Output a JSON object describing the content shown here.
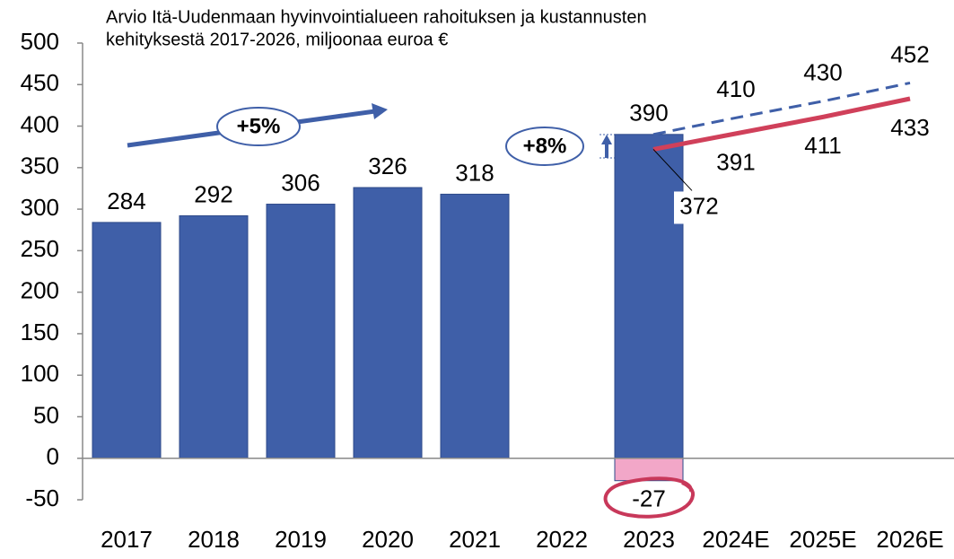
{
  "chart_data": {
    "type": "bar",
    "title": [
      "Arvio Itä-Uudenmaan hyvinvointialueen rahoituksen ja kustannusten",
      "kehityksestä 2017-2026, miljoonaa euroa €"
    ],
    "categories": [
      "2017",
      "2018",
      "2019",
      "2020",
      "2021",
      "2022",
      "2023",
      "2024E",
      "2025E",
      "2026E"
    ],
    "series": [
      {
        "type": "bar",
        "color": "#3f5fa8",
        "values": [
          284,
          292,
          306,
          326,
          318,
          null,
          390,
          null,
          null,
          null
        ]
      },
      {
        "type": "bar",
        "color": "#f2a7c8",
        "values": [
          null,
          null,
          null,
          null,
          null,
          null,
          -27,
          null,
          null,
          null
        ]
      },
      {
        "type": "line",
        "dashed": true,
        "color": "#3f5fa8",
        "values": [
          null,
          null,
          null,
          null,
          null,
          null,
          390,
          410,
          430,
          452
        ]
      },
      {
        "type": "line",
        "dashed": false,
        "color": "#d0405a",
        "values": [
          null,
          null,
          null,
          null,
          null,
          null,
          372,
          391,
          411,
          433
        ]
      }
    ],
    "annotations": [
      "+5%",
      "+8%"
    ],
    "ylim": [
      -50,
      500
    ],
    "yticks": [
      -50,
      0,
      50,
      100,
      150,
      200,
      250,
      300,
      350,
      400,
      450,
      500
    ],
    "grid": false
  }
}
